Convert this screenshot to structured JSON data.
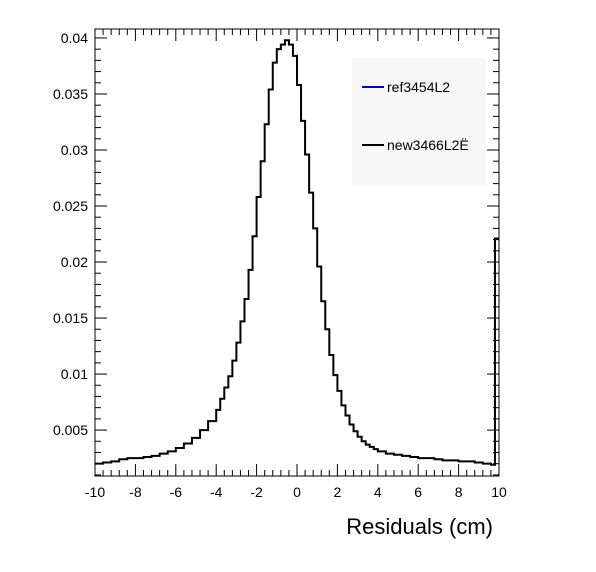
{
  "chart_data": {
    "type": "line",
    "style": "step-histogram",
    "xlabel": "Residuals (cm)",
    "ylabel": "",
    "title": "",
    "xlim": [
      -10,
      10
    ],
    "ylim": [
      0.0009,
      0.0408
    ],
    "x_ticks": [
      -10,
      -8,
      -6,
      -4,
      -2,
      0,
      2,
      4,
      6,
      8,
      10
    ],
    "x_tick_labels": [
      "-10",
      "-8",
      "-6",
      "-4",
      "-2",
      "0",
      "2",
      "4",
      "6",
      "8",
      "10"
    ],
    "y_ticks": [
      0.005,
      0.01,
      0.015,
      0.02,
      0.025,
      0.03,
      0.035,
      0.04
    ],
    "y_tick_labels": [
      "0.005",
      "0.01",
      "0.015",
      "0.02",
      "0.025",
      "0.03",
      "0.035",
      "0.04"
    ],
    "grid": false,
    "legend_position": "top-right",
    "series": [
      {
        "name": "ref3454L2",
        "color": "#0000cc",
        "values": []
      },
      {
        "name": "new3466L2Ë",
        "color": "#000000",
        "bin_edges": [
          -10,
          -9.6,
          -9.2,
          -8.8,
          -8.4,
          -8.0,
          -7.6,
          -7.2,
          -6.8,
          -6.4,
          -6.0,
          -5.6,
          -5.2,
          -4.8,
          -4.4,
          -4.0,
          -3.8,
          -3.6,
          -3.4,
          -3.2,
          -3.0,
          -2.8,
          -2.6,
          -2.4,
          -2.2,
          -2.0,
          -1.8,
          -1.6,
          -1.4,
          -1.2,
          -1.0,
          -0.8,
          -0.6,
          -0.4,
          -0.2,
          0.0,
          0.2,
          0.4,
          0.6,
          0.8,
          1.0,
          1.2,
          1.4,
          1.6,
          1.8,
          2.0,
          2.2,
          2.4,
          2.6,
          2.8,
          3.0,
          3.2,
          3.4,
          3.6,
          3.8,
          4.0,
          4.4,
          4.8,
          5.2,
          5.6,
          6.0,
          6.4,
          6.8,
          7.2,
          7.6,
          8.0,
          8.4,
          8.8,
          9.2,
          9.6,
          9.8,
          10.0
        ],
        "values": [
          0.002,
          0.0021,
          0.0022,
          0.0024,
          0.0025,
          0.0025,
          0.0026,
          0.0027,
          0.0029,
          0.0031,
          0.0034,
          0.0038,
          0.0043,
          0.005,
          0.0058,
          0.0068,
          0.0078,
          0.0088,
          0.0098,
          0.0112,
          0.0128,
          0.0147,
          0.0167,
          0.0193,
          0.0223,
          0.0258,
          0.029,
          0.0323,
          0.0354,
          0.0378,
          0.039,
          0.0394,
          0.0398,
          0.0394,
          0.0384,
          0.0358,
          0.0326,
          0.0296,
          0.0262,
          0.023,
          0.0196,
          0.0165,
          0.014,
          0.0117,
          0.0099,
          0.0085,
          0.0072,
          0.0063,
          0.0055,
          0.0049,
          0.0044,
          0.004,
          0.0037,
          0.0035,
          0.0033,
          0.0031,
          0.0029,
          0.0028,
          0.0027,
          0.0026,
          0.0025,
          0.0025,
          0.0024,
          0.0023,
          0.0023,
          0.0022,
          0.0022,
          0.0021,
          0.002,
          0.0019,
          0.0221
        ]
      }
    ]
  }
}
